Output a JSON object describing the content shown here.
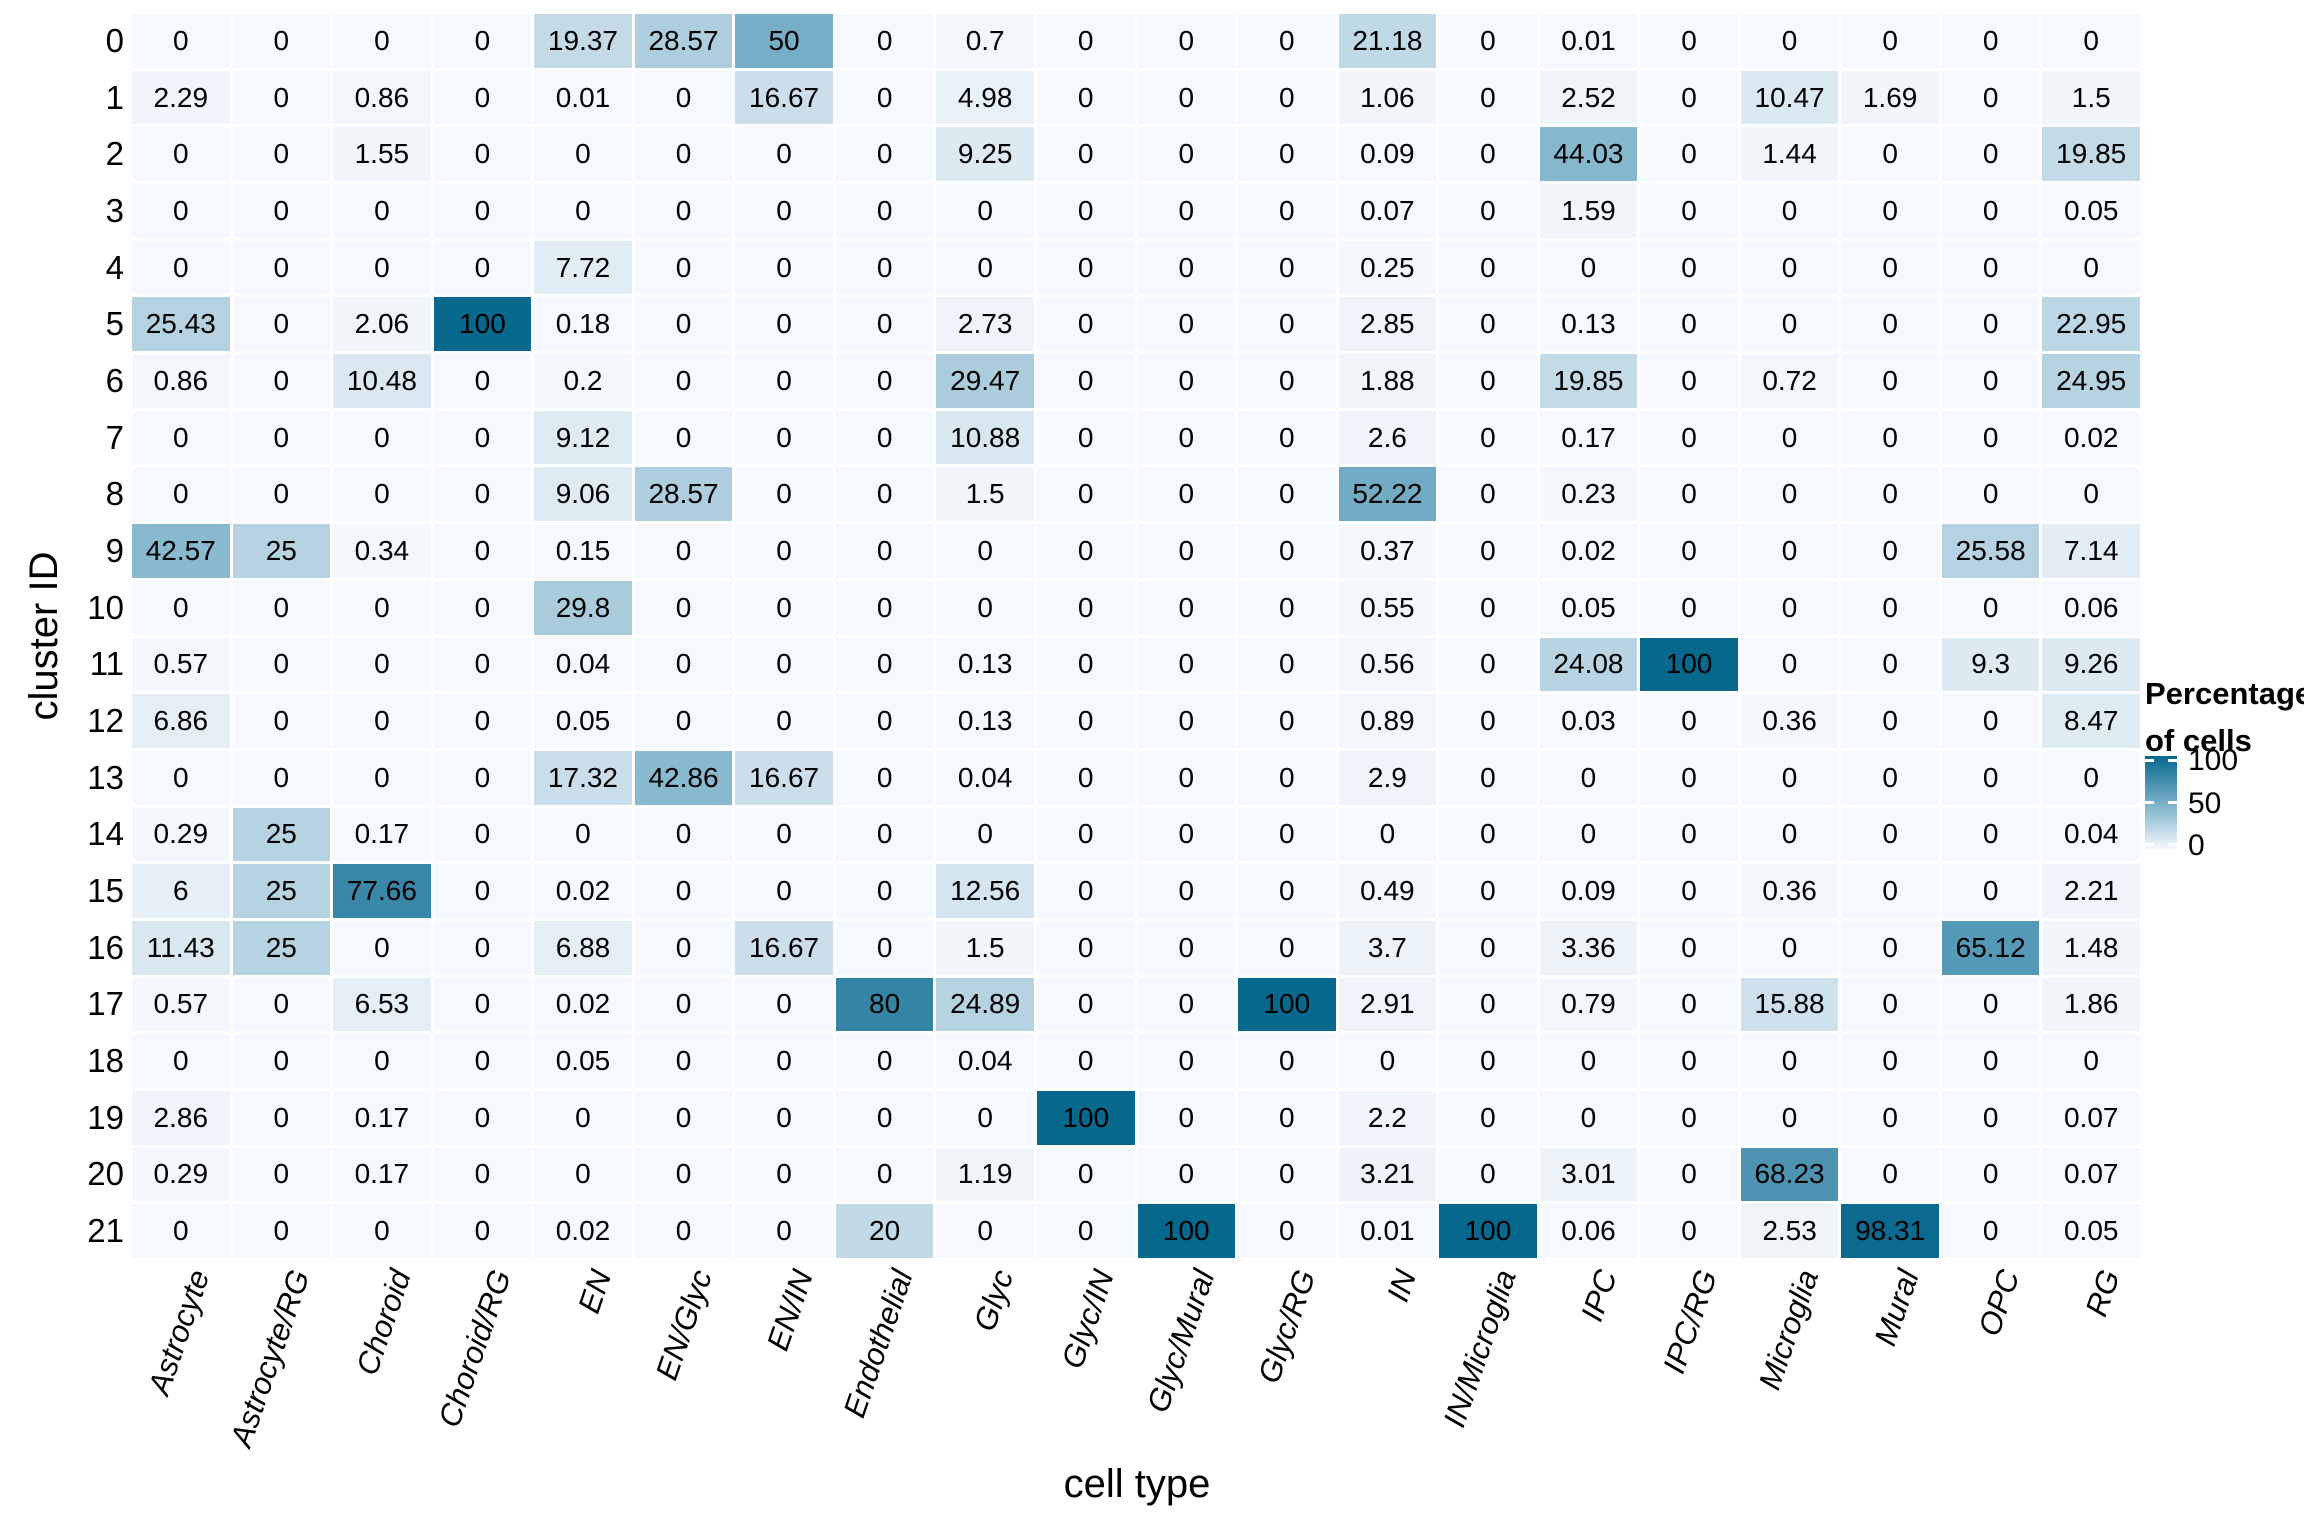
{
  "chart_data": {
    "type": "heatmap",
    "title": "",
    "xlabel": "cell type",
    "ylabel": "cluster ID",
    "columns": [
      "Astrocyte",
      "Astrocyte/RG",
      "Choroid",
      "Choroid/RG",
      "EN",
      "EN/Glyc",
      "EN/IN",
      "Endothelial",
      "Glyc",
      "Glyc/IN",
      "Glyc/Mural",
      "Glyc/RG",
      "IN",
      "IN/Microglia",
      "IPC",
      "IPC/RG",
      "Microglia",
      "Mural",
      "OPC",
      "RG"
    ],
    "rows": [
      "0",
      "1",
      "2",
      "3",
      "4",
      "5",
      "6",
      "7",
      "8",
      "9",
      "10",
      "11",
      "12",
      "13",
      "14",
      "15",
      "16",
      "17",
      "18",
      "19",
      "20",
      "21"
    ],
    "values": [
      [
        0,
        0,
        0,
        0,
        19.37,
        28.57,
        50,
        0,
        0.7,
        0,
        0,
        0,
        21.18,
        0,
        0.01,
        0,
        0,
        0,
        0,
        0
      ],
      [
        2.29,
        0,
        0.86,
        0,
        0.01,
        0,
        16.67,
        0,
        4.98,
        0,
        0,
        0,
        1.06,
        0,
        2.52,
        0,
        10.47,
        1.69,
        0,
        1.5
      ],
      [
        0,
        0,
        1.55,
        0,
        0,
        0,
        0,
        0,
        9.25,
        0,
        0,
        0,
        0.09,
        0,
        44.03,
        0,
        1.44,
        0,
        0,
        19.85
      ],
      [
        0,
        0,
        0,
        0,
        0,
        0,
        0,
        0,
        0,
        0,
        0,
        0,
        0.07,
        0,
        1.59,
        0,
        0,
        0,
        0,
        0.05
      ],
      [
        0,
        0,
        0,
        0,
        7.72,
        0,
        0,
        0,
        0,
        0,
        0,
        0,
        0.25,
        0,
        0,
        0,
        0,
        0,
        0,
        0
      ],
      [
        25.43,
        0,
        2.06,
        100,
        0.18,
        0,
        0,
        0,
        2.73,
        0,
        0,
        0,
        2.85,
        0,
        0.13,
        0,
        0,
        0,
        0,
        22.95
      ],
      [
        0.86,
        0,
        10.48,
        0,
        0.2,
        0,
        0,
        0,
        29.47,
        0,
        0,
        0,
        1.88,
        0,
        19.85,
        0,
        0.72,
        0,
        0,
        24.95
      ],
      [
        0,
        0,
        0,
        0,
        9.12,
        0,
        0,
        0,
        10.88,
        0,
        0,
        0,
        2.6,
        0,
        0.17,
        0,
        0,
        0,
        0,
        0.02
      ],
      [
        0,
        0,
        0,
        0,
        9.06,
        28.57,
        0,
        0,
        1.5,
        0,
        0,
        0,
        52.22,
        0,
        0.23,
        0,
        0,
        0,
        0,
        0
      ],
      [
        42.57,
        25,
        0.34,
        0,
        0.15,
        0,
        0,
        0,
        0,
        0,
        0,
        0,
        0.37,
        0,
        0.02,
        0,
        0,
        0,
        25.58,
        7.14
      ],
      [
        0,
        0,
        0,
        0,
        29.8,
        0,
        0,
        0,
        0,
        0,
        0,
        0,
        0.55,
        0,
        0.05,
        0,
        0,
        0,
        0,
        0.06
      ],
      [
        0.57,
        0,
        0,
        0,
        0.04,
        0,
        0,
        0,
        0.13,
        0,
        0,
        0,
        0.56,
        0,
        24.08,
        100,
        0,
        0,
        9.3,
        9.26
      ],
      [
        6.86,
        0,
        0,
        0,
        0.05,
        0,
        0,
        0,
        0.13,
        0,
        0,
        0,
        0.89,
        0,
        0.03,
        0,
        0.36,
        0,
        0,
        8.47
      ],
      [
        0,
        0,
        0,
        0,
        17.32,
        42.86,
        16.67,
        0,
        0.04,
        0,
        0,
        0,
        2.9,
        0,
        0,
        0,
        0,
        0,
        0,
        0
      ],
      [
        0.29,
        25,
        0.17,
        0,
        0,
        0,
        0,
        0,
        0,
        0,
        0,
        0,
        0,
        0,
        0,
        0,
        0,
        0,
        0,
        0.04
      ],
      [
        6,
        25,
        77.66,
        0,
        0.02,
        0,
        0,
        0,
        12.56,
        0,
        0,
        0,
        0.49,
        0,
        0.09,
        0,
        0.36,
        0,
        0,
        2.21
      ],
      [
        11.43,
        25,
        0,
        0,
        6.88,
        0,
        16.67,
        0,
        1.5,
        0,
        0,
        0,
        3.7,
        0,
        3.36,
        0,
        0,
        0,
        65.12,
        1.48
      ],
      [
        0.57,
        0,
        6.53,
        0,
        0.02,
        0,
        0,
        80,
        24.89,
        0,
        0,
        100,
        2.91,
        0,
        0.79,
        0,
        15.88,
        0,
        0,
        1.86
      ],
      [
        0,
        0,
        0,
        0,
        0.05,
        0,
        0,
        0,
        0.04,
        0,
        0,
        0,
        0,
        0,
        0,
        0,
        0,
        0,
        0,
        0
      ],
      [
        2.86,
        0,
        0.17,
        0,
        0,
        0,
        0,
        0,
        0,
        100,
        0,
        0,
        2.2,
        0,
        0,
        0,
        0,
        0,
        0,
        0.07
      ],
      [
        0.29,
        0,
        0.17,
        0,
        0,
        0,
        0,
        0,
        1.19,
        0,
        0,
        0,
        3.21,
        0,
        3.01,
        0,
        68.23,
        0,
        0,
        0.07
      ],
      [
        0,
        0,
        0,
        0,
        0.02,
        0,
        0,
        20,
        0,
        0,
        100,
        0,
        0.01,
        100,
        0.06,
        0,
        2.53,
        98.31,
        0,
        0.05
      ]
    ],
    "legend": {
      "title_line1": "Percentage",
      "title_line2": "of cells",
      "ticks": [
        "100",
        "50",
        "0"
      ]
    },
    "value_range": [
      0,
      100
    ],
    "grid": false,
    "legend_position": "right",
    "colors": {
      "scale_0": "#f5f8fc",
      "scale_50": "#76aec7",
      "scale_100": "#07688e",
      "cell_text": "#000000",
      "background": "#ffffff"
    }
  }
}
